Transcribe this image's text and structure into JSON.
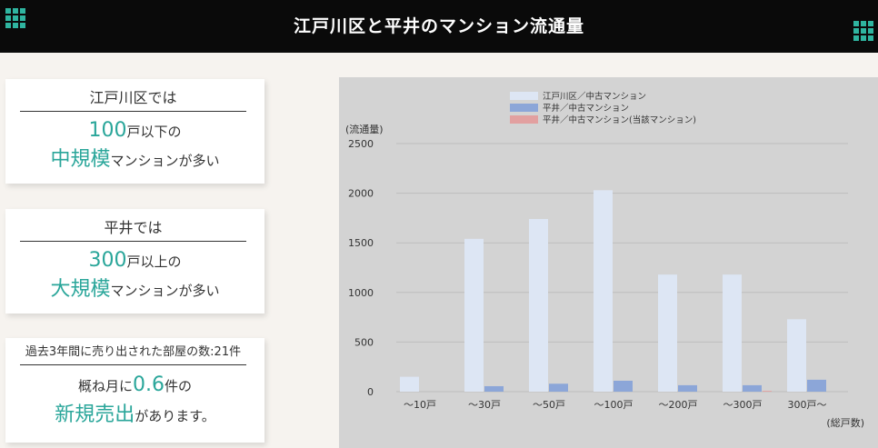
{
  "header": {
    "title": "江戸川区と平井のマンション流通量"
  },
  "cards": [
    {
      "heading": "江戸川区では",
      "line1_num": "100",
      "line1_rest": "戸以下の",
      "line2_em": "中規模",
      "line2_rest": "マンションが多い"
    },
    {
      "heading": "平井では",
      "line1_num": "300",
      "line1_rest": "戸以上の",
      "line2_em": "大規模",
      "line2_rest": "マンションが多い"
    },
    {
      "heading": "過去3年間に売り出された部屋の数:21件",
      "line1_pre": "概ね月に",
      "line1_num": "0.6",
      "line1_rest": "件の",
      "line2_em": "新規売出",
      "line2_rest": "があります。"
    }
  ],
  "colors": {
    "edogawa": "#dde6f4",
    "hirai": "#8ca6d8",
    "hirai_target": "#e2a0a0",
    "chart_bg": "#d3d3d3",
    "accent": "#2aa69a"
  },
  "chart_data": {
    "type": "bar",
    "ylabel": "(流通量)",
    "xlabel": "(総戸数)",
    "ylim": [
      0,
      2500
    ],
    "yticks": [
      0,
      500,
      1000,
      1500,
      2000,
      2500
    ],
    "grid": true,
    "legend_position": "top-center",
    "categories": [
      "～10戸",
      "～30戸",
      "～50戸",
      "～100戸",
      "～200戸",
      "～300戸",
      "300戸～"
    ],
    "series": [
      {
        "name": "江戸川区／中古マンション",
        "color": "#dde6f4",
        "values": [
          150,
          1540,
          1740,
          2030,
          1180,
          1180,
          730
        ]
      },
      {
        "name": "平井／中古マンション",
        "color": "#8ca6d8",
        "values": [
          0,
          55,
          80,
          110,
          65,
          65,
          120
        ]
      },
      {
        "name": "平井／中古マンション(当該マンション)",
        "color": "#e2a0a0",
        "values": [
          0,
          0,
          0,
          0,
          0,
          8,
          0
        ]
      }
    ]
  }
}
